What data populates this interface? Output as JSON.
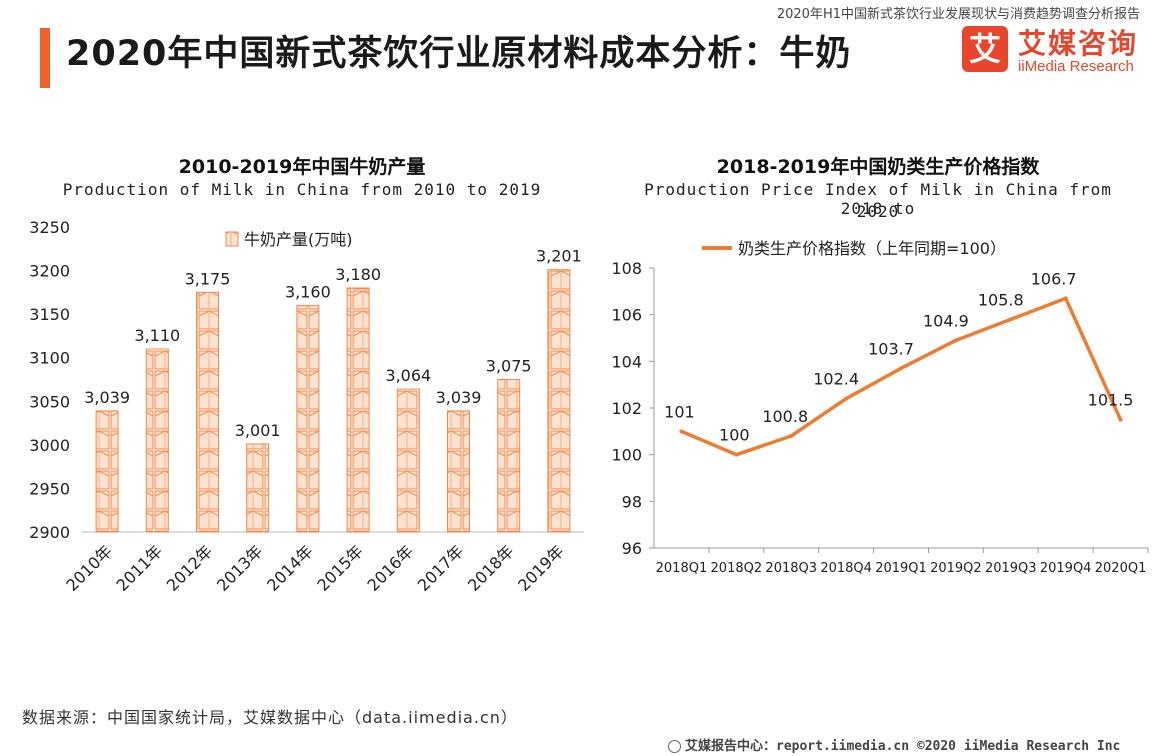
{
  "report_title": "2020年H1中国新式茶饮行业发展现状与消费趋势调查分析报告",
  "page_title": "2020年中国新式茶饮行业原材料成本分析：牛奶",
  "logo": {
    "icon_char": "艾",
    "cn": "艾媒咨询",
    "en": "iiMedia Research"
  },
  "source": "数据来源：中国国家统计局，艾媒数据中心（data.iimedia.cn）",
  "footer": "艾媒报告中心：report.iimedia.cn  ©2020  iiMedia Research  Inc",
  "colors": {
    "accent": "#f0602a",
    "bar_fill": "#fbd9c0",
    "bar_stroke": "#f08a4b",
    "line": "#ed7d31"
  },
  "chart_data": [
    {
      "type": "bar",
      "title": "2010-2019年中国牛奶产量",
      "subtitle": "Production of Milk in China from 2010 to 2019",
      "legend": "牛奶产量(万吨)",
      "categories": [
        "2010年",
        "2011年",
        "2012年",
        "2013年",
        "2014年",
        "2015年",
        "2016年",
        "2017年",
        "2018年",
        "2019年"
      ],
      "values": [
        3039,
        3110,
        3175,
        3001,
        3160,
        3180,
        3064,
        3039,
        3075,
        3201
      ],
      "labels": [
        "3,039",
        "3,110",
        "3,175",
        "3,001",
        "3,160",
        "3,180",
        "3,064",
        "3,039",
        "3,075",
        "3,201"
      ],
      "ylim": [
        2900,
        3250
      ],
      "yticks": [
        "2900",
        "2950",
        "3000",
        "3050",
        "3100",
        "3150",
        "3200",
        "3250"
      ]
    },
    {
      "type": "line",
      "title": "2018-2019年中国奶类生产价格指数",
      "subtitle_line1": "Production Price Index of Milk in China from 2018 to",
      "subtitle_line2": "2020",
      "legend": "奶类生产价格指数（上年同期=100）",
      "categories": [
        "2018Q1",
        "2018Q2",
        "2018Q3",
        "2018Q4",
        "2019Q1",
        "2019Q2",
        "2019Q3",
        "2019Q4",
        "2020Q1"
      ],
      "values": [
        101,
        100,
        100.8,
        102.4,
        103.7,
        104.9,
        105.8,
        106.7,
        101.5
      ],
      "labels": [
        "101",
        "100",
        "100.8",
        "102.4",
        "103.7",
        "104.9",
        "105.8",
        "106.7",
        "101.5"
      ],
      "ylim": [
        96,
        108
      ],
      "yticks": [
        "96",
        "98",
        "100",
        "102",
        "104",
        "106",
        "108"
      ]
    }
  ]
}
